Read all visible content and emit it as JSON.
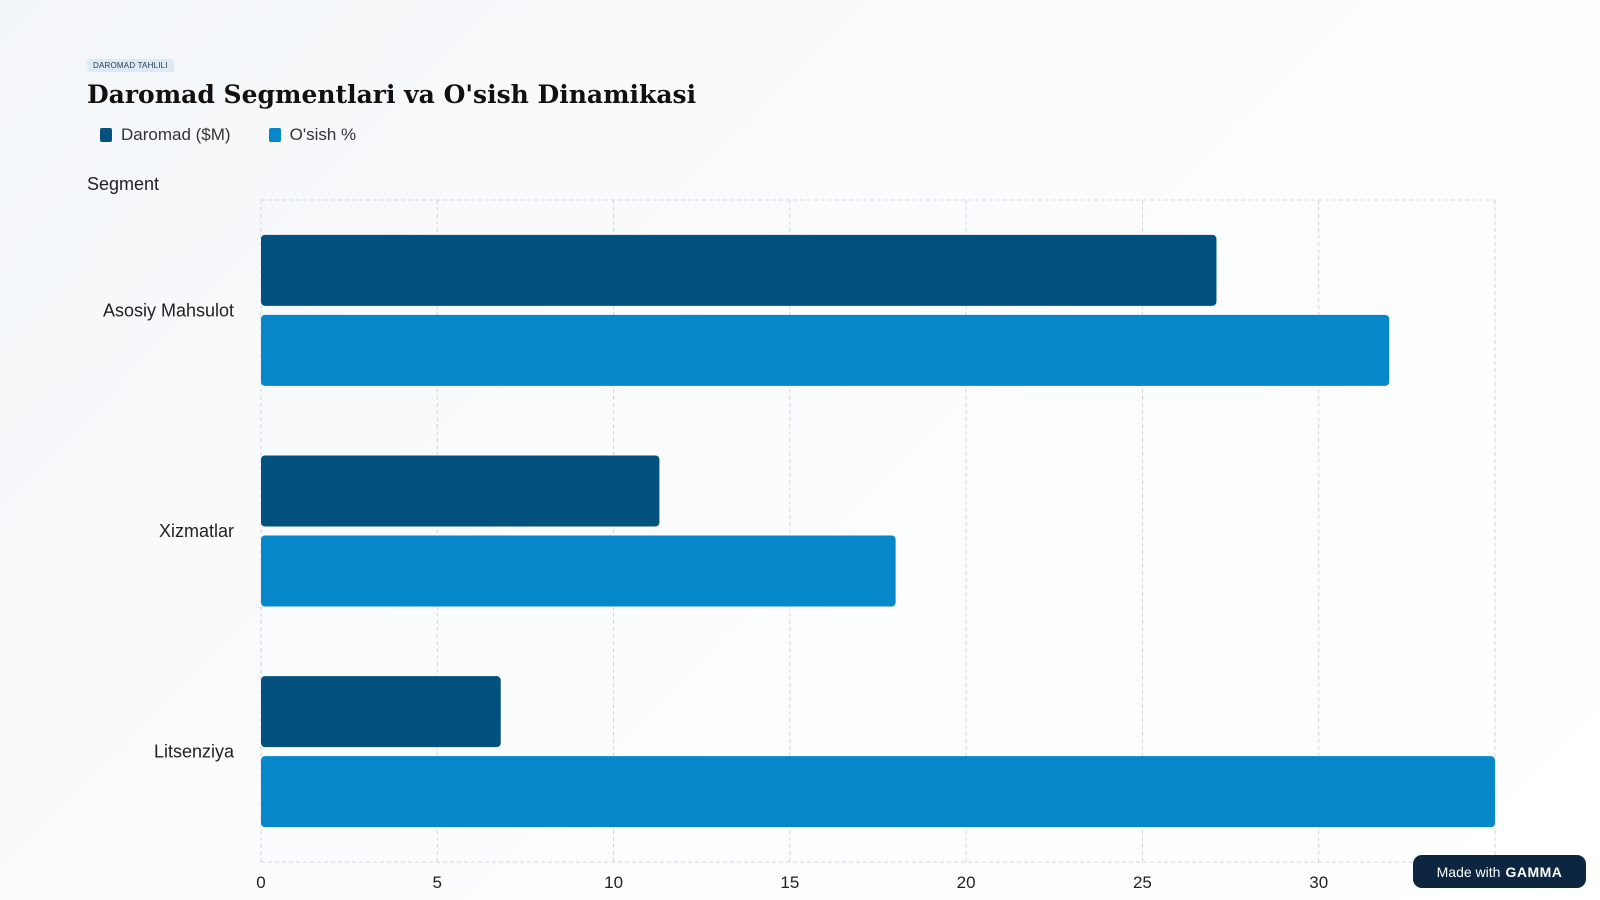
{
  "badge": "DAROMAD TAHLILI",
  "title": "Daromad Segmentlari va O'sish Dinamikasi",
  "watermark": {
    "prefix": "Made with",
    "brand": "GAMMA"
  },
  "chart_data": {
    "type": "bar",
    "orientation": "horizontal",
    "title": "Daromad Segmentlari va O'sish Dinamikasi",
    "ylabel": "Segment",
    "xlabel": "",
    "categories": [
      "Asosiy Mahsulot",
      "Xizmatlar",
      "Litsenziya"
    ],
    "series": [
      {
        "name": "Daromad ($M)",
        "color": "#03517f",
        "values": [
          27.1,
          11.3,
          6.8
        ]
      },
      {
        "name": "O'sish %",
        "color": "#0687c9",
        "values": [
          32.0,
          18.0,
          35.0
        ]
      }
    ],
    "xlim": [
      0,
      35
    ],
    "xticks": [
      0,
      5,
      10,
      15,
      20,
      25,
      30,
      35
    ],
    "grid": true,
    "legend": "top-left"
  }
}
